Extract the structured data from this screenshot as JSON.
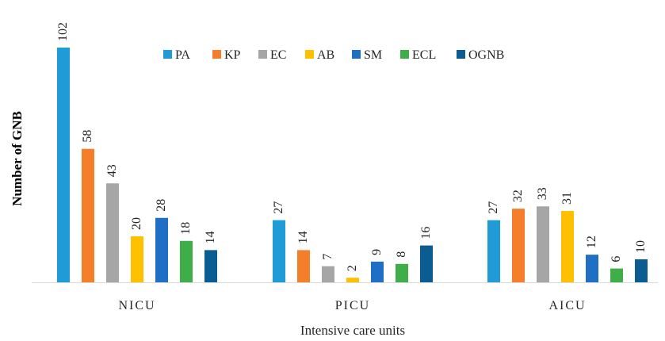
{
  "chart_data": {
    "type": "bar",
    "ylabel": "Number of GNB",
    "xlabel": "Intensive care units",
    "categories": [
      "NICU",
      "PICU",
      "AICU"
    ],
    "series": [
      {
        "name": "PA",
        "color": "#1f9bd7",
        "values": [
          102,
          27,
          27
        ]
      },
      {
        "name": "KP",
        "color": "#f57e2b",
        "values": [
          58,
          14,
          32
        ]
      },
      {
        "name": "EC",
        "color": "#a6a6a6",
        "values": [
          43,
          7,
          33
        ]
      },
      {
        "name": "AB",
        "color": "#ffc000",
        "values": [
          20,
          2,
          31
        ]
      },
      {
        "name": "SM",
        "color": "#1f6fc5",
        "values": [
          28,
          9,
          12
        ]
      },
      {
        "name": "ECL",
        "color": "#3fae49",
        "values": [
          18,
          8,
          6
        ]
      },
      {
        "name": "OGNB",
        "color": "#0b5d91",
        "values": [
          14,
          16,
          10
        ]
      }
    ],
    "ylim": [
      0,
      102
    ],
    "legend": "top",
    "grid": false
  }
}
